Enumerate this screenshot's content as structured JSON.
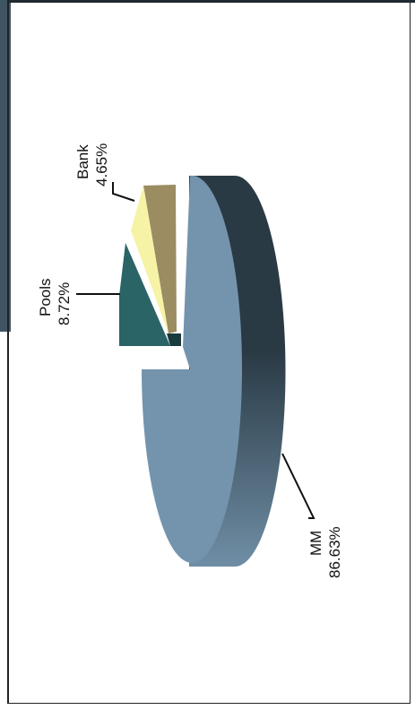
{
  "chart_data": {
    "type": "pie",
    "style": "3d-exploded",
    "orientation": "rotated-90-ccw",
    "categories": [
      "MM",
      "Pools",
      "Bank"
    ],
    "values": [
      86.63,
      8.72,
      4.65
    ],
    "labels": [
      {
        "name": "MM",
        "pct": "86.63%"
      },
      {
        "name": "Pools",
        "pct": "8.72%"
      },
      {
        "name": "Bank",
        "pct": "4.65%"
      }
    ],
    "colors": {
      "MM": "#7494ad",
      "MM_side_dark": "#2a3a45",
      "MM_side_light": "#6f8ea5",
      "Pools": "#2b6466",
      "Pools_side": "#183b3d",
      "Bank": "#f7f3a6",
      "Bank_side": "#9b8c62"
    },
    "title": "",
    "legend": "none"
  }
}
